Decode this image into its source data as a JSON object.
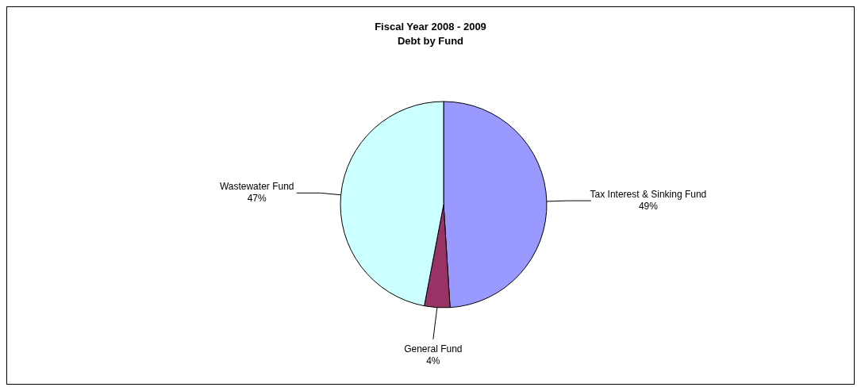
{
  "chart_data": {
    "type": "pie",
    "title": "Fiscal Year 2008 - 2009\nDebt by Fund",
    "categories": [
      "Tax Interest & Sinking Fund",
      "General Fund",
      "Wastewater Fund"
    ],
    "values": [
      49,
      4,
      47
    ],
    "colors": [
      "#9999ff",
      "#993366",
      "#ccffff"
    ],
    "value_labels": [
      "49%",
      "4%",
      "47%"
    ]
  }
}
